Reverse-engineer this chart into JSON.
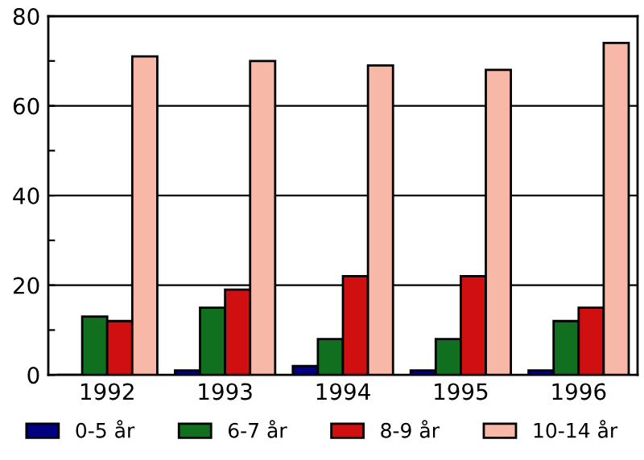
{
  "chart_data": {
    "type": "bar",
    "categories": [
      "1992",
      "1993",
      "1994",
      "1995",
      "1996"
    ],
    "series": [
      {
        "name": "0-5 år",
        "color": "#000080",
        "values": [
          0,
          1,
          2,
          1,
          1
        ]
      },
      {
        "name": "6-7 år",
        "color": "#107020",
        "values": [
          13,
          15,
          8,
          8,
          12
        ]
      },
      {
        "name": "8-9 år",
        "color": "#d01010",
        "values": [
          12,
          19,
          22,
          22,
          15
        ]
      },
      {
        "name": "10-14 år",
        "color": "#f8b8a8",
        "values": [
          71,
          70,
          69,
          68,
          74
        ]
      }
    ],
    "ylim": [
      0,
      80
    ],
    "yticks": [
      0,
      {
        "value": 10,
        "label": null
      },
      20,
      {
        "value": 30,
        "label": null
      },
      40,
      {
        "value": 50,
        "label": null
      },
      60,
      {
        "value": 70,
        "label": null
      },
      80
    ],
    "grid": "y",
    "legend": "bottom"
  }
}
